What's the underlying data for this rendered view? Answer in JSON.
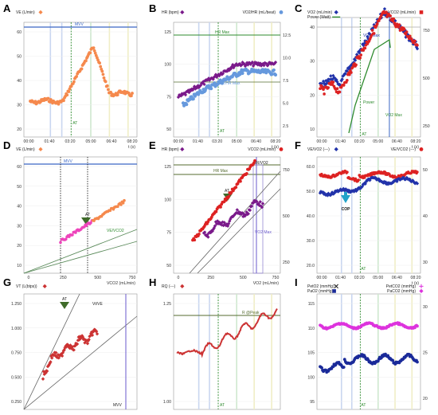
{
  "chart_data": [
    {
      "panel": "A",
      "type": "line",
      "legend": [
        {
          "label": "VE (L/min)",
          "marker": "diamond",
          "color": "#f5894d"
        }
      ],
      "x_ticks": [
        "00:00",
        "01:40",
        "03:20",
        "05:00",
        "06:40",
        "08:20"
      ],
      "x_unit": "t (s)",
      "y_ticks": [
        "20",
        "30",
        "40",
        "50",
        "60"
      ],
      "annotations": [
        {
          "text": "MVV",
          "color": "#3a66c4"
        },
        {
          "text": "AT",
          "color": "#2e8b2e"
        }
      ],
      "series_color": "#f5894d"
    },
    {
      "panel": "B",
      "type": "scatter",
      "legend_left": [
        {
          "label": "HR (bpm)",
          "marker": "diamond",
          "color": "#7a1a8a"
        }
      ],
      "legend_right": [
        {
          "label": "VO2/HR (mL/beat)",
          "marker": "circle",
          "color": "#6699dd"
        }
      ],
      "x_ticks": [
        "00:00",
        "01:40",
        "03:20",
        "05:00",
        "06:40",
        "08:20"
      ],
      "x_unit": "t (s)",
      "y_ticks": [
        "50",
        "75",
        "100",
        "125"
      ],
      "y2_ticks": [
        "2.5",
        "5.0",
        "7.5",
        "10.0",
        "12.5"
      ],
      "annotations": [
        {
          "text": "HR Max",
          "color": "#2e8b2e"
        },
        {
          "text": "VO2/HR Max",
          "color": "#6699dd"
        },
        {
          "text": "AT",
          "color": "#2e8b2e"
        }
      ]
    },
    {
      "panel": "C",
      "type": "scatter",
      "legend_left": [
        {
          "label": "VO2 (mL/min)",
          "marker": "diamond",
          "color": "#2233aa"
        },
        {
          "label": "Power (Watt)",
          "marker": "line",
          "color": "#2e8b2e"
        }
      ],
      "legend_right": [
        {
          "label": "VCO2 (mL/min)",
          "marker": "square",
          "color": "#dd2222"
        }
      ],
      "x_ticks": [
        "00:00",
        "01:40",
        "03:20",
        "05:00",
        "06:40",
        "08:20"
      ],
      "x_unit": "t (s)",
      "y_ticks": [
        "10",
        "20",
        "30",
        "40"
      ],
      "y2_ticks": [
        "250",
        "500",
        "750"
      ],
      "annotations": [
        {
          "text": "VO2 Max",
          "color": "#2233aa"
        },
        {
          "text": "Power",
          "color": "#2e8b2e"
        },
        {
          "text": "VO2 Max",
          "color": "#2e8b2e"
        },
        {
          "text": "AT",
          "color": "#2e8b2e"
        }
      ]
    },
    {
      "panel": "D",
      "type": "scatter",
      "legend": [
        {
          "label": "VE (L/min)",
          "marker": "diamond",
          "color": "#f5894d"
        }
      ],
      "x_ticks": [
        "0",
        "250",
        "500",
        "750"
      ],
      "x_unit": "VCO2 (mL/min)",
      "y_ticks": [
        "10",
        "20",
        "30",
        "40",
        "50",
        "60"
      ],
      "annotations": [
        {
          "text": "MVV",
          "color": "#3a66c4"
        },
        {
          "text": "AT",
          "color": "#222"
        },
        {
          "text": "VE/VCO2",
          "color": "#2e8b2e"
        }
      ]
    },
    {
      "panel": "E",
      "type": "scatter",
      "legend_left": [
        {
          "label": "HR (bpm)",
          "marker": "diamond",
          "color": "#7a1a8a"
        }
      ],
      "legend_right": [
        {
          "label": "VCO2 (mL/min)",
          "marker": "circle",
          "color": "#dd2222"
        }
      ],
      "x_ticks": [
        "0",
        "250",
        "500",
        "750"
      ],
      "x_unit": "VO2 (mL/min)",
      "y_ticks": [
        "50",
        "75",
        "100",
        "125"
      ],
      "y2_ticks": [
        "250",
        "500",
        "750"
      ],
      "annotations": [
        {
          "text": "HR Max",
          "color": "#556b2f"
        },
        {
          "text": "HR/VO2",
          "color": "#222"
        },
        {
          "text": "AT",
          "color": "#222"
        },
        {
          "text": "VO2 Max",
          "color": "#6a5acd"
        }
      ]
    },
    {
      "panel": "F",
      "type": "line",
      "legend_left": [
        {
          "label": "VE/VO2 (---)",
          "marker": "diamond",
          "color": "#2233aa"
        }
      ],
      "legend_right": [
        {
          "label": "VE/VCO2 (---)",
          "marker": "circle",
          "color": "#dd2222"
        }
      ],
      "x_ticks": [
        "00:00",
        "01:40",
        "03:20",
        "05:00",
        "06:40",
        "08:20"
      ],
      "x_unit": "t (s)",
      "y_ticks": [
        "20.0",
        "30.0",
        "40.0",
        "50.0",
        "60.0"
      ],
      "y2_ticks": [
        "30",
        "40",
        "50"
      ],
      "annotations": [
        {
          "text": "COP",
          "color": "#111"
        },
        {
          "text": "AT",
          "color": "#2e8b2e"
        }
      ]
    },
    {
      "panel": "G",
      "type": "scatter",
      "legend": [
        {
          "label": "VT (L(btps))",
          "marker": "diamond",
          "color": "#cc3333"
        }
      ],
      "x_ticks": [
        "0.0",
        "10.0",
        "20.0",
        "30.0",
        "40.0",
        "50.0",
        "60.0"
      ],
      "x_unit": "VE (L/min)",
      "y_ticks": [
        "0.250",
        "0.500",
        "0.750",
        "1.000",
        "1.250"
      ],
      "annotations": [
        {
          "text": "Vt/VE",
          "color": "#222"
        },
        {
          "text": "AT",
          "color": "#222"
        },
        {
          "text": "MVV",
          "color": "#222"
        }
      ]
    },
    {
      "panel": "H",
      "type": "line",
      "legend": [
        {
          "label": "RQ (---)",
          "marker": "diamond",
          "color": "#cc3333"
        }
      ],
      "x_ticks": [
        "00:00",
        "01:40",
        "03:20",
        "05:00",
        "06:40",
        "08:20"
      ],
      "x_unit": "t (s)",
      "y_ticks": [
        "1.00",
        "1.25"
      ],
      "annotations": [
        {
          "text": "R @Peak",
          "color": "#556b2f"
        },
        {
          "text": "AT",
          "color": "#2e8b2e"
        }
      ]
    },
    {
      "panel": "I",
      "type": "line",
      "legend_left": [
        {
          "label": "PetO2 (mmHg)",
          "marker": "cross",
          "color": "#111"
        },
        {
          "label": "PaO2 (mmHg)",
          "marker": "square",
          "color": "#1a2a99"
        }
      ],
      "legend_right": [
        {
          "label": "PetCO2 (mmHg)",
          "marker": "plus",
          "color": "#dd33dd"
        },
        {
          "label": "PaCO2 (mmHg)",
          "marker": "diamond",
          "color": "#dd33dd"
        }
      ],
      "x_ticks": [
        "00:00",
        "01:40",
        "03:20",
        "05:00",
        "06:40",
        "08:20"
      ],
      "x_unit": "t (s)",
      "y_ticks": [
        "95",
        "100",
        "105",
        "110",
        "115"
      ],
      "y2_ticks": [
        "20",
        "25",
        "30"
      ],
      "annotations": [
        {
          "text": "AT",
          "color": "#2e8b2e"
        }
      ]
    }
  ],
  "colors": {
    "orange": "#f5894d",
    "purple": "#7a1a8a",
    "lightblue": "#6699dd",
    "blue": "#2233aa",
    "red": "#dd2222",
    "green": "#2e8b2e",
    "magenta": "#dd33dd",
    "navy": "#1a2a99"
  }
}
